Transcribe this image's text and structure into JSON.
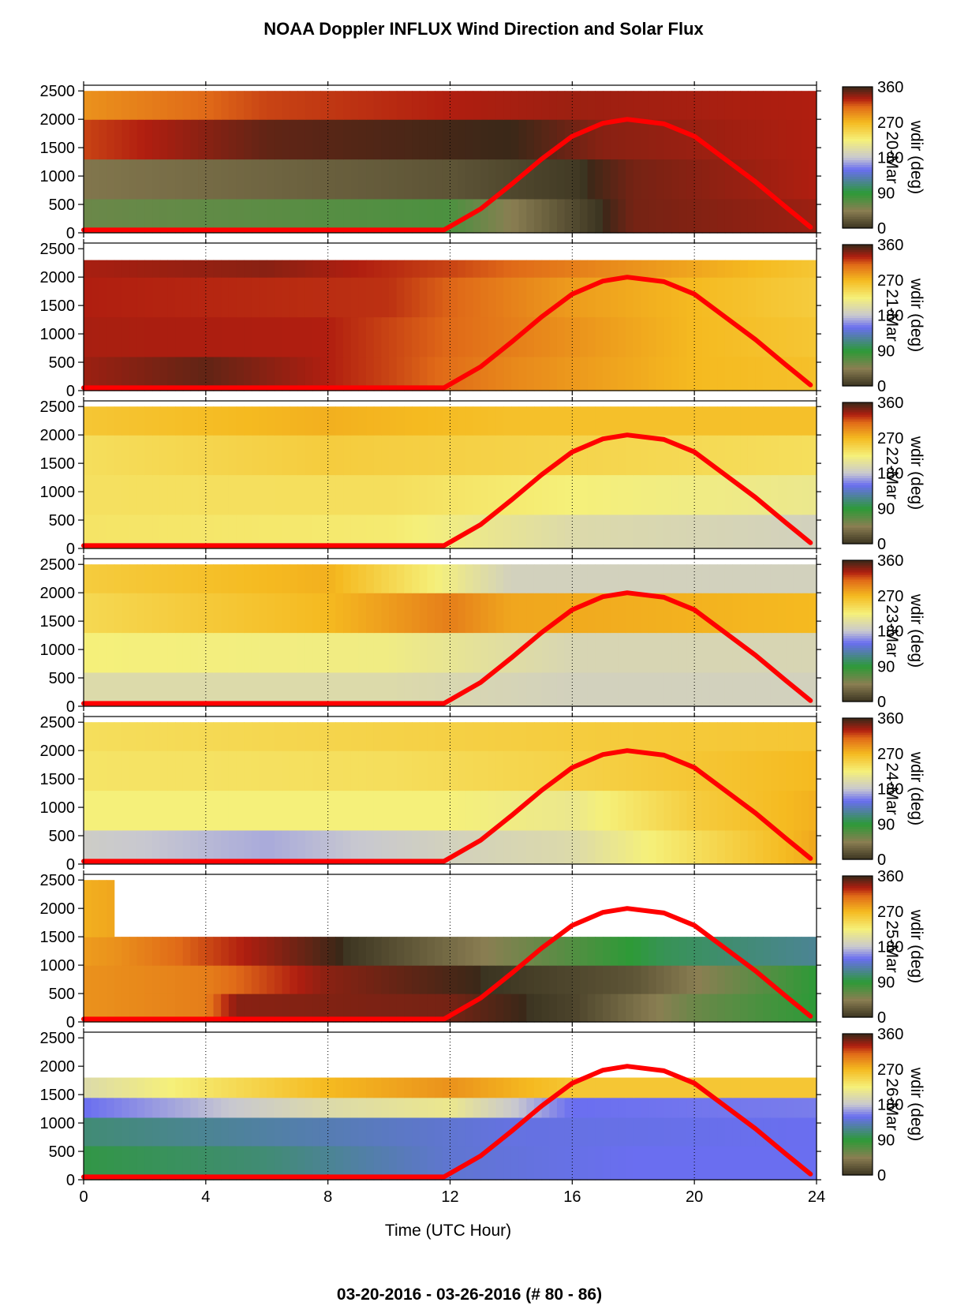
{
  "title": "NOAA Doppler INFLUX Wind Direction and Solar Flux",
  "footer": "03-20-2016 - 03-26-2016   (# 80 - 86)",
  "chart_data": {
    "type": "heatmap",
    "x_axis": {
      "label": "Time (UTC Hour)",
      "range": [
        0,
        24
      ],
      "ticks": [
        0,
        4,
        8,
        12,
        16,
        20,
        24
      ]
    },
    "y_axis": {
      "range": [
        0,
        2600
      ],
      "ticks": [
        0,
        500,
        1000,
        1500,
        2000,
        2500
      ]
    },
    "colorbar": {
      "label": "wdir (deg)",
      "range": [
        0,
        360
      ],
      "ticks": [
        0,
        90,
        180,
        270,
        360
      ],
      "colors": [
        {
          "value": 0,
          "color": "#3a3320"
        },
        {
          "value": 45,
          "color": "#8a7e52"
        },
        {
          "value": 90,
          "color": "#2d9a37"
        },
        {
          "value": 150,
          "color": "#6a6ef0"
        },
        {
          "value": 180,
          "color": "#c8c8d0"
        },
        {
          "value": 225,
          "color": "#f5f07a"
        },
        {
          "value": 270,
          "color": "#f5ba20"
        },
        {
          "value": 310,
          "color": "#e06a18"
        },
        {
          "value": 330,
          "color": "#b01e10"
        },
        {
          "value": 360,
          "color": "#3a2818"
        }
      ]
    },
    "solar_flux_curve": {
      "color": "#ff0000",
      "x": [
        0,
        11.8,
        13,
        14,
        15,
        16,
        17,
        17.8,
        19,
        20,
        21,
        22,
        23,
        23.8
      ],
      "y": [
        50,
        50,
        420,
        850,
        1300,
        1700,
        1930,
        2000,
        1920,
        1700,
        1300,
        900,
        450,
        100
      ]
    },
    "gridlines_x": [
      4,
      8,
      12,
      16,
      20
    ],
    "panels": [
      {
        "label": "20-Mar",
        "data_bands": [
          {
            "from": 0,
            "to": 600,
            "values": [
              {
                "x": 0,
                "value": 60
              },
              {
                "x": 12,
                "value": 75
              },
              {
                "x": 15,
                "value": 30
              },
              {
                "x": 18,
                "value": 345
              },
              {
                "x": 24,
                "value": 335
              }
            ]
          },
          {
            "from": 600,
            "to": 1300,
            "values": [
              {
                "x": 0,
                "value": 40
              },
              {
                "x": 12,
                "value": 20
              },
              {
                "x": 16,
                "value": 5
              },
              {
                "x": 18,
                "value": 345
              },
              {
                "x": 24,
                "value": 330
              }
            ]
          },
          {
            "from": 1300,
            "to": 2000,
            "values": [
              {
                "x": 0,
                "value": 320
              },
              {
                "x": 6,
                "value": 350
              },
              {
                "x": 14,
                "value": 0
              },
              {
                "x": 17,
                "value": 340
              },
              {
                "x": 24,
                "value": 330
              }
            ]
          },
          {
            "from": 2000,
            "to": 2500,
            "values": [
              {
                "x": 0,
                "value": 290
              },
              {
                "x": 6,
                "value": 320
              },
              {
                "x": 12,
                "value": 330
              },
              {
                "x": 16,
                "value": 335
              },
              {
                "x": 24,
                "value": 330
              }
            ]
          }
        ]
      },
      {
        "label": "21-Mar",
        "data_bands": [
          {
            "from": 0,
            "to": 600,
            "values": [
              {
                "x": 0,
                "value": 335
              },
              {
                "x": 4,
                "value": 350
              },
              {
                "x": 10,
                "value": 320
              },
              {
                "x": 14,
                "value": 295
              },
              {
                "x": 20,
                "value": 270
              },
              {
                "x": 24,
                "value": 265
              }
            ]
          },
          {
            "from": 600,
            "to": 1300,
            "values": [
              {
                "x": 0,
                "value": 332
              },
              {
                "x": 8,
                "value": 330
              },
              {
                "x": 14,
                "value": 300
              },
              {
                "x": 20,
                "value": 270
              },
              {
                "x": 24,
                "value": 260
              }
            ]
          },
          {
            "from": 1300,
            "to": 2000,
            "values": [
              {
                "x": 0,
                "value": 330
              },
              {
                "x": 10,
                "value": 325
              },
              {
                "x": 16,
                "value": 285
              },
              {
                "x": 24,
                "value": 255
              }
            ]
          },
          {
            "from": 2000,
            "to": 2300,
            "values": [
              {
                "x": 0,
                "value": 332
              },
              {
                "x": 6,
                "value": 340
              },
              {
                "x": 12,
                "value": 320
              },
              {
                "x": 24,
                "value": 260
              }
            ]
          }
        ]
      },
      {
        "label": "22-Mar",
        "data_bands": [
          {
            "from": 0,
            "to": 600,
            "values": [
              {
                "x": 0,
                "value": 235
              },
              {
                "x": 10,
                "value": 230
              },
              {
                "x": 16,
                "value": 200
              },
              {
                "x": 24,
                "value": 190
              }
            ]
          },
          {
            "from": 600,
            "to": 1300,
            "values": [
              {
                "x": 0,
                "value": 238
              },
              {
                "x": 10,
                "value": 240
              },
              {
                "x": 16,
                "value": 225
              },
              {
                "x": 24,
                "value": 215
              }
            ]
          },
          {
            "from": 1300,
            "to": 2000,
            "values": [
              {
                "x": 0,
                "value": 240
              },
              {
                "x": 8,
                "value": 255
              },
              {
                "x": 14,
                "value": 250
              },
              {
                "x": 24,
                "value": 240
              }
            ]
          },
          {
            "from": 2000,
            "to": 2500,
            "values": [
              {
                "x": 0,
                "value": 260
              },
              {
                "x": 8,
                "value": 275
              },
              {
                "x": 14,
                "value": 265
              },
              {
                "x": 24,
                "value": 265
              }
            ]
          }
        ]
      },
      {
        "label": "23-Mar",
        "data_bands": [
          {
            "from": 0,
            "to": 600,
            "values": [
              {
                "x": 0,
                "value": 200
              },
              {
                "x": 10,
                "value": 200
              },
              {
                "x": 16,
                "value": 190
              },
              {
                "x": 24,
                "value": 190
              }
            ]
          },
          {
            "from": 600,
            "to": 1300,
            "values": [
              {
                "x": 0,
                "value": 225
              },
              {
                "x": 10,
                "value": 220
              },
              {
                "x": 16,
                "value": 195
              },
              {
                "x": 24,
                "value": 195
              }
            ]
          },
          {
            "from": 1300,
            "to": 2000,
            "values": [
              {
                "x": 0,
                "value": 245
              },
              {
                "x": 8,
                "value": 270
              },
              {
                "x": 12,
                "value": 300
              },
              {
                "x": 14,
                "value": 280
              },
              {
                "x": 24,
                "value": 270
              }
            ]
          },
          {
            "from": 2000,
            "to": 2500,
            "values": [
              {
                "x": 0,
                "value": 255
              },
              {
                "x": 8,
                "value": 275
              },
              {
                "x": 14,
                "value": 190
              },
              {
                "x": 24,
                "value": 190
              }
            ]
          }
        ]
      },
      {
        "label": "24-Mar",
        "data_bands": [
          {
            "from": 0,
            "to": 600,
            "values": [
              {
                "x": 0,
                "value": 185
              },
              {
                "x": 6,
                "value": 170
              },
              {
                "x": 12,
                "value": 190
              },
              {
                "x": 16,
                "value": 200
              },
              {
                "x": 21,
                "value": 250
              },
              {
                "x": 24,
                "value": 280
              }
            ]
          },
          {
            "from": 600,
            "to": 1300,
            "values": [
              {
                "x": 0,
                "value": 225
              },
              {
                "x": 12,
                "value": 225
              },
              {
                "x": 16,
                "value": 215
              },
              {
                "x": 20,
                "value": 255
              },
              {
                "x": 24,
                "value": 275
              }
            ]
          },
          {
            "from": 1300,
            "to": 2000,
            "values": [
              {
                "x": 0,
                "value": 235
              },
              {
                "x": 10,
                "value": 240
              },
              {
                "x": 16,
                "value": 250
              },
              {
                "x": 24,
                "value": 270
              }
            ]
          },
          {
            "from": 2000,
            "to": 2500,
            "values": [
              {
                "x": 0,
                "value": 240
              },
              {
                "x": 10,
                "value": 250
              },
              {
                "x": 16,
                "value": 255
              },
              {
                "x": 24,
                "value": 260
              }
            ]
          }
        ]
      },
      {
        "label": "25-Mar",
        "data_bands": [
          {
            "from": 0,
            "to": 500,
            "values": [
              {
                "x": 0,
                "value": 290
              },
              {
                "x": 4,
                "value": 300
              },
              {
                "x": 5,
                "value": 340
              },
              {
                "x": 12,
                "value": 345
              },
              {
                "x": 16,
                "value": 10
              },
              {
                "x": 20,
                "value": 60
              },
              {
                "x": 24,
                "value": 90
              }
            ]
          },
          {
            "from": 500,
            "to": 1000,
            "values": [
              {
                "x": 0,
                "value": 290
              },
              {
                "x": 4,
                "value": 300
              },
              {
                "x": 8,
                "value": 340
              },
              {
                "x": 18,
                "value": 20
              },
              {
                "x": 24,
                "value": 90
              }
            ]
          },
          {
            "from": 1000,
            "to": 1500,
            "values": [
              {
                "x": 0,
                "value": 285
              },
              {
                "x": 1,
                "value": 290
              },
              {
                "x": 19,
                "value": 100
              },
              {
                "x": 24,
                "value": 120
              }
            ]
          },
          {
            "from": 1500,
            "to": 2500,
            "values": [
              {
                "x": 0,
                "value": 275
              },
              {
                "x": 1,
                "value": 280
              }
            ]
          }
        ]
      },
      {
        "label": "26-Mar",
        "data_bands": [
          {
            "from": 0,
            "to": 600,
            "values": [
              {
                "x": 0,
                "value": 95
              },
              {
                "x": 6,
                "value": 110
              },
              {
                "x": 12,
                "value": 140
              },
              {
                "x": 18,
                "value": 150
              },
              {
                "x": 24,
                "value": 150
              }
            ]
          },
          {
            "from": 600,
            "to": 1100,
            "values": [
              {
                "x": 0,
                "value": 110
              },
              {
                "x": 8,
                "value": 130
              },
              {
                "x": 14,
                "value": 145
              },
              {
                "x": 24,
                "value": 150
              }
            ]
          },
          {
            "from": 1100,
            "to": 1450,
            "values": [
              {
                "x": 0,
                "value": 150
              },
              {
                "x": 8,
                "value": 200
              },
              {
                "x": 12,
                "value": 215
              },
              {
                "x": 16,
                "value": 150
              },
              {
                "x": 24,
                "value": 155
              }
            ]
          },
          {
            "from": 1450,
            "to": 1800,
            "values": [
              {
                "x": 0,
                "value": 200
              },
              {
                "x": 8,
                "value": 270
              },
              {
                "x": 12,
                "value": 290
              },
              {
                "x": 16,
                "value": 260
              }
            ]
          }
        ]
      }
    ]
  }
}
